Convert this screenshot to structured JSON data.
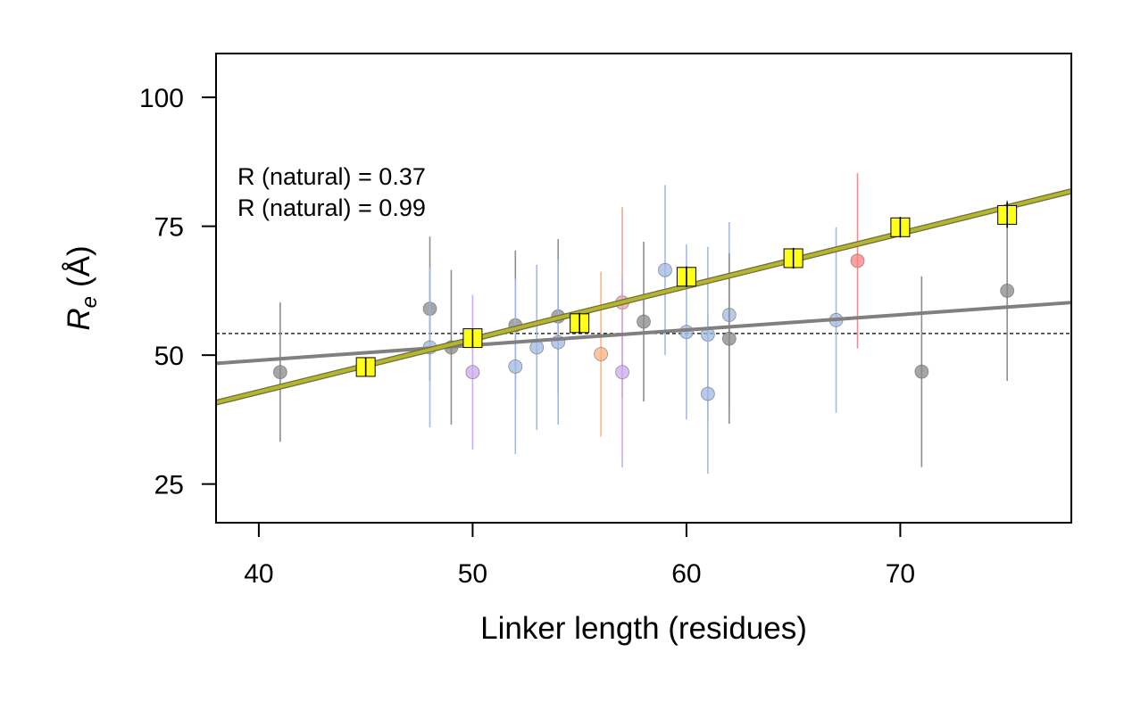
{
  "chart_data": {
    "type": "scatter",
    "xlabel": "Linker length (residues)",
    "ylabel": {
      "symbol": "R",
      "subscript": "e",
      "unit": "(Å)"
    },
    "xlim": [
      38,
      78
    ],
    "ylim": [
      17.5,
      108.5
    ],
    "xticks": [
      40,
      50,
      60,
      70
    ],
    "yticks": [
      25,
      50,
      75,
      100
    ],
    "grid": false,
    "reference_line": {
      "y": 54.2,
      "style": "dashed"
    },
    "annotations": [
      "R (natural) = 0.37",
      "R (natural) = 0.99"
    ],
    "fit_lines": [
      {
        "color": "#808080",
        "x": [
          38,
          78
        ],
        "y": [
          48.4,
          60.2
        ]
      },
      {
        "color": "#b5b530",
        "x": [
          38,
          78
        ],
        "y": [
          40.8,
          81.8
        ]
      }
    ],
    "series": [
      {
        "marker": "circle",
        "points": [
          {
            "x": 41,
            "y": 46.7,
            "err": 13.5,
            "color": "#888888"
          },
          {
            "x": 48,
            "y": 59.0,
            "err": 14.0,
            "color": "#888888"
          },
          {
            "x": 48,
            "y": 51.5,
            "err": 15.5,
            "color": "#9fb8e3"
          },
          {
            "x": 49,
            "y": 51.5,
            "err": 15.0,
            "color": "#888888"
          },
          {
            "x": 50,
            "y": 46.7,
            "err": 15.0,
            "color": "#c9a8f0"
          },
          {
            "x": 52,
            "y": 55.8,
            "err": 14.5,
            "color": "#888888"
          },
          {
            "x": 52,
            "y": 47.8,
            "err": 17.0,
            "color": "#9fb8e3"
          },
          {
            "x": 53,
            "y": 51.5,
            "err": 16.0,
            "color": "#9fb8e3"
          },
          {
            "x": 54,
            "y": 57.5,
            "err": 15.0,
            "color": "#888888"
          },
          {
            "x": 54,
            "y": 52.5,
            "err": 16.0,
            "color": "#9fb8e3"
          },
          {
            "x": 56,
            "y": 50.2,
            "err": 16.0,
            "color": "#ffb080"
          },
          {
            "x": 57,
            "y": 60.2,
            "err": 18.5,
            "color": "#f0a090"
          },
          {
            "x": 57,
            "y": 46.7,
            "err": 18.5,
            "color": "#c9a8f0"
          },
          {
            "x": 58,
            "y": 56.5,
            "err": 15.5,
            "color": "#888888"
          },
          {
            "x": 59,
            "y": 66.5,
            "err": 16.5,
            "color": "#9fb8e3"
          },
          {
            "x": 60,
            "y": 54.5,
            "err": 17.0,
            "color": "#9fb8e3"
          },
          {
            "x": 61,
            "y": 54.0,
            "err": 17.0,
            "color": "#9fb8e3"
          },
          {
            "x": 61,
            "y": 42.5,
            "err": 15.5,
            "color": "#9fb8e3"
          },
          {
            "x": 62,
            "y": 57.8,
            "err": 18.0,
            "color": "#9fb8e3"
          },
          {
            "x": 62,
            "y": 53.2,
            "err": 16.5,
            "color": "#888888"
          },
          {
            "x": 67,
            "y": 56.8,
            "err": 18.0,
            "color": "#9fb8e3"
          },
          {
            "x": 68,
            "y": 68.3,
            "err": 17.0,
            "color": "#ff8080"
          },
          {
            "x": 71,
            "y": 46.8,
            "err": 18.5,
            "color": "#888888"
          },
          {
            "x": 75,
            "y": 62.5,
            "err": 17.5,
            "color": "#888888"
          }
        ]
      },
      {
        "marker": "square",
        "color": "#ffff1a",
        "points": [
          {
            "x": 45,
            "y": 47.7,
            "err": 1.8
          },
          {
            "x": 50,
            "y": 53.3,
            "err": 1.8
          },
          {
            "x": 55,
            "y": 56.2,
            "err": 2.0
          },
          {
            "x": 60,
            "y": 65.2,
            "err": 2.0
          },
          {
            "x": 65,
            "y": 68.8,
            "err": 2.0
          },
          {
            "x": 70,
            "y": 74.8,
            "err": 2.0
          },
          {
            "x": 75,
            "y": 77.2,
            "err": 2.5
          }
        ]
      }
    ]
  }
}
